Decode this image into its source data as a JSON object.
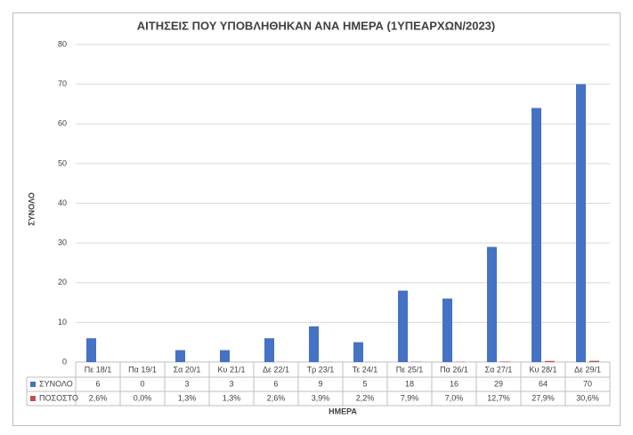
{
  "chart_data": {
    "type": "bar",
    "title": "ΑΙΤΗΣΕΙΣ ΠΟΥ ΥΠΟΒΛΗΘΗΚΑΝ ΑΝΑ ΗΜΕΡΑ (1ΥΠΕΑΡΧΩΝ/2023)",
    "x_label": "ΗΜΕΡΑ",
    "y_label": "ΣΥΝΟΛΟ",
    "categories": [
      "Πε 18/1",
      "Πα 19/1",
      "Σα 20/1",
      "Κυ 21/1",
      "Δε 22/1",
      "Τρ 23/1",
      "Τε 24/1",
      "Πε 25/1",
      "Πα 26/1",
      "Σα 27/1",
      "Κυ 28/1",
      "Δε 29/1"
    ],
    "series": [
      {
        "name": "ΣΥΝΟΛΟ",
        "color": "#4472c4",
        "values": [
          6,
          0,
          3,
          3,
          6,
          9,
          5,
          18,
          16,
          29,
          64,
          70
        ]
      },
      {
        "name": "ΠΟΣΟΣΤΟ",
        "color": "#c0504d",
        "values": [
          0.026,
          0,
          0.013,
          0.013,
          0.026,
          0.039,
          0.022,
          0.079,
          0.07,
          0.127,
          0.279,
          0.306
        ],
        "value_labels": [
          "2,6%",
          "0,0%",
          "1,3%",
          "1,3%",
          "2,6%",
          "3,9%",
          "2,2%",
          "7,9%",
          "7,0%",
          "12,7%",
          "27,9%",
          "30,6%"
        ]
      }
    ],
    "ylim": [
      0,
      80
    ],
    "yticks": [
      0,
      10,
      20,
      30,
      40,
      50,
      60,
      70,
      80
    ],
    "grid": true
  }
}
